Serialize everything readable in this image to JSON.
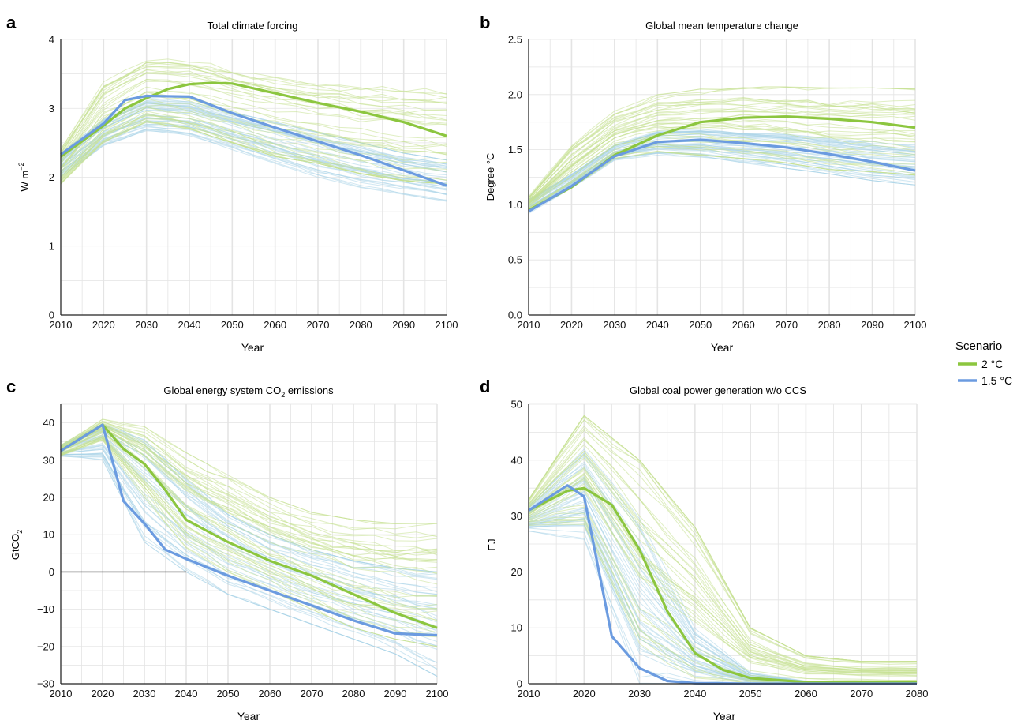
{
  "legend": {
    "title": "Scenario",
    "entries": [
      {
        "label": "2 °C",
        "color": "#8cc63f"
      },
      {
        "label": "1.5 °C",
        "color": "#6b9be0"
      }
    ]
  },
  "colors": {
    "green_main": "#8cc63f",
    "blue_main": "#6b9be0",
    "green_thin": "#c5e08f",
    "blue_thin": "#a9d3e8",
    "grid": "#e4e4e4",
    "zero_line": "#333333"
  },
  "chart_data": [
    {
      "panel": "a",
      "type": "line",
      "title": "Total climate forcing",
      "xlabel": "Year",
      "ylabel": "W m",
      "ylabel_sup": "−2",
      "xlim": [
        2010,
        2100
      ],
      "ylim": [
        0,
        4
      ],
      "xticks": [
        2010,
        2020,
        2030,
        2040,
        2050,
        2060,
        2070,
        2080,
        2090,
        2100
      ],
      "yticks": [
        0,
        1,
        2,
        3,
        4
      ],
      "ytick_labels": [
        "0",
        "1",
        "2",
        "3",
        "4"
      ],
      "grid": true,
      "zero_line": false,
      "band": {
        "x": [
          2010,
          2020,
          2030,
          2040,
          2050,
          2060,
          2070,
          2080,
          2090,
          2100
        ],
        "green_low": [
          1.9,
          2.5,
          2.8,
          2.7,
          2.5,
          2.3,
          2.2,
          2.05,
          1.95,
          1.9
        ],
        "green_high": [
          2.45,
          3.45,
          3.8,
          3.8,
          3.65,
          3.55,
          3.45,
          3.4,
          3.35,
          3.3
        ],
        "blue_low": [
          2.0,
          2.45,
          2.65,
          2.6,
          2.4,
          2.2,
          2.0,
          1.85,
          1.75,
          1.65
        ],
        "blue_high": [
          2.35,
          2.85,
          3.15,
          3.1,
          2.95,
          2.8,
          2.65,
          2.5,
          2.35,
          2.25
        ]
      },
      "series": [
        {
          "name": "2 °C",
          "x": [
            2010,
            2020,
            2025,
            2030,
            2035,
            2040,
            2045,
            2050,
            2060,
            2070,
            2080,
            2090,
            2100
          ],
          "y": [
            2.3,
            2.75,
            3.0,
            3.15,
            3.28,
            3.35,
            3.37,
            3.36,
            3.22,
            3.08,
            2.95,
            2.8,
            2.6
          ]
        },
        {
          "name": "1.5 °C",
          "x": [
            2010,
            2020,
            2025,
            2030,
            2040,
            2050,
            2060,
            2070,
            2080,
            2090,
            2100
          ],
          "y": [
            2.33,
            2.78,
            3.12,
            3.18,
            3.17,
            2.93,
            2.72,
            2.52,
            2.32,
            2.1,
            1.88
          ]
        }
      ]
    },
    {
      "panel": "b",
      "type": "line",
      "title": "Global mean temperature change",
      "xlabel": "Year",
      "ylabel": "Degree °C",
      "ylabel_sup": "",
      "xlim": [
        2010,
        2100
      ],
      "ylim": [
        0,
        2.5
      ],
      "xticks": [
        2010,
        2020,
        2030,
        2040,
        2050,
        2060,
        2070,
        2080,
        2090,
        2100
      ],
      "yticks": [
        0,
        0.5,
        1,
        1.5,
        2,
        2.5
      ],
      "ytick_labels": [
        "0.0",
        "0.5",
        "1.0",
        "1.5",
        "2.0",
        "2.5"
      ],
      "grid": true,
      "zero_line": false,
      "band": {
        "x": [
          2010,
          2020,
          2030,
          2040,
          2050,
          2060,
          2070,
          2080,
          2090,
          2100
        ],
        "green_low": [
          0.95,
          1.15,
          1.42,
          1.48,
          1.45,
          1.42,
          1.38,
          1.32,
          1.3,
          1.27
        ],
        "green_high": [
          1.08,
          1.55,
          1.85,
          2.0,
          2.05,
          2.07,
          2.07,
          2.06,
          2.06,
          2.05
        ],
        "blue_low": [
          0.92,
          1.15,
          1.4,
          1.45,
          1.43,
          1.38,
          1.33,
          1.28,
          1.22,
          1.18
        ],
        "blue_high": [
          1.05,
          1.28,
          1.55,
          1.68,
          1.7,
          1.68,
          1.66,
          1.62,
          1.58,
          1.55
        ]
      },
      "series": [
        {
          "name": "2 °C",
          "x": [
            2010,
            2020,
            2030,
            2040,
            2050,
            2060,
            2070,
            2080,
            2090,
            2100
          ],
          "y": [
            0.95,
            1.16,
            1.45,
            1.63,
            1.75,
            1.79,
            1.8,
            1.78,
            1.75,
            1.7
          ]
        },
        {
          "name": "1.5 °C",
          "x": [
            2010,
            2020,
            2030,
            2040,
            2050,
            2060,
            2070,
            2080,
            2090,
            2100
          ],
          "y": [
            0.94,
            1.17,
            1.44,
            1.57,
            1.59,
            1.56,
            1.52,
            1.46,
            1.39,
            1.31
          ]
        }
      ]
    },
    {
      "panel": "c",
      "type": "line",
      "title": "Global energy system CO",
      "title_sub": "2",
      "title_after": " emissions",
      "xlabel": "Year",
      "ylabel": "GtCO",
      "ylabel_sub": "2",
      "xlim": [
        2010,
        2100
      ],
      "ylim": [
        -30,
        45
      ],
      "xticks": [
        2010,
        2020,
        2030,
        2040,
        2050,
        2060,
        2070,
        2080,
        2090,
        2100
      ],
      "yticks": [
        -30,
        -20,
        -10,
        0,
        10,
        20,
        30,
        40
      ],
      "ytick_labels": [
        "−30",
        "−20",
        "−10",
        "0",
        "10",
        "20",
        "30",
        "40"
      ],
      "grid": true,
      "zero_line": true,
      "band": {
        "x": [
          2010,
          2020,
          2030,
          2040,
          2050,
          2060,
          2070,
          2080,
          2090,
          2100
        ],
        "green_low": [
          31,
          35,
          20,
          6,
          0,
          -5,
          -10,
          -15,
          -18,
          -20
        ],
        "green_high": [
          34,
          41,
          39,
          32,
          26,
          20,
          16,
          14,
          13,
          13
        ],
        "blue_low": [
          31,
          30,
          8,
          0,
          -6,
          -10,
          -14,
          -18,
          -22,
          -28
        ],
        "blue_high": [
          34,
          40,
          36,
          25,
          16,
          10,
          6,
          3,
          1,
          0
        ]
      },
      "series": [
        {
          "name": "2 °C",
          "x": [
            2010,
            2020,
            2025,
            2030,
            2035,
            2040,
            2045,
            2050,
            2060,
            2070,
            2080,
            2090,
            2100
          ],
          "y": [
            32.5,
            39.5,
            33,
            29,
            22,
            14,
            11,
            8,
            3,
            -1,
            -6,
            -11,
            -15
          ]
        },
        {
          "name": "1.5 °C",
          "x": [
            2010,
            2020,
            2025,
            2030,
            2035,
            2040,
            2050,
            2060,
            2070,
            2080,
            2090,
            2100
          ],
          "y": [
            32.5,
            39.5,
            19,
            13,
            6,
            3.5,
            -1,
            -5,
            -9,
            -13,
            -16.5,
            -17
          ]
        }
      ]
    },
    {
      "panel": "d",
      "type": "line",
      "title": "Global coal power generation w/o CCS",
      "xlabel": "Year",
      "ylabel": "EJ",
      "ylabel_sup": "",
      "xlim": [
        2010,
        2080
      ],
      "ylim": [
        0,
        50
      ],
      "xticks": [
        2010,
        2020,
        2030,
        2040,
        2050,
        2060,
        2070,
        2080
      ],
      "yticks": [
        0,
        10,
        20,
        30,
        40,
        50
      ],
      "ytick_labels": [
        "0",
        "10",
        "20",
        "30",
        "40",
        "50"
      ],
      "grid": true,
      "zero_line": false,
      "band": {
        "x": [
          2010,
          2020,
          2030,
          2040,
          2050,
          2060,
          2070,
          2080
        ],
        "green_low": [
          28,
          27,
          6,
          1,
          0,
          0,
          0,
          0
        ],
        "green_high": [
          33,
          48,
          40,
          28,
          10,
          5,
          4,
          4
        ],
        "blue_low": [
          27,
          25,
          0,
          0,
          0,
          0,
          0,
          0
        ],
        "blue_high": [
          32,
          42,
          30,
          10,
          2,
          0.5,
          0.3,
          0.2
        ]
      },
      "series": [
        {
          "name": "2 °C",
          "x": [
            2010,
            2017,
            2020,
            2025,
            2030,
            2035,
            2040,
            2045,
            2050,
            2060,
            2070,
            2080
          ],
          "y": [
            31,
            34.5,
            35,
            32,
            24,
            13,
            5.5,
            2.5,
            1,
            0.3,
            0.2,
            0.2
          ]
        },
        {
          "name": "1.5 °C",
          "x": [
            2010,
            2017,
            2020,
            2025,
            2030,
            2035,
            2040,
            2050,
            2060,
            2070,
            2080
          ],
          "y": [
            31,
            35.5,
            33.5,
            8.5,
            2.8,
            0.5,
            0.1,
            0,
            0,
            0,
            0
          ]
        }
      ]
    }
  ]
}
